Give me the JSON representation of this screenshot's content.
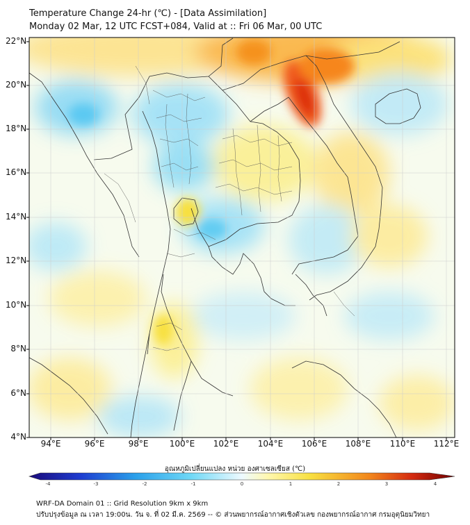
{
  "title_line1": "Temperature Change 24-hr (℃) - [Data Assimilation]",
  "title_line2": "Monday 02 Mar, 12 UTC FCST+084, Valid at :: Fri 06 Mar, 00 UTC",
  "lat_ticks": [
    "22°N",
    "20°N",
    "18°N",
    "16°N",
    "14°N",
    "12°N",
    "10°N",
    "8°N",
    "6°N",
    "4°N"
  ],
  "lon_ticks": [
    "94°E",
    "96°E",
    "98°E",
    "100°E",
    "102°E",
    "104°E",
    "106°E",
    "108°E",
    "110°E",
    "112°E"
  ],
  "colorbar": {
    "label": "อุณหภูมิเปลี่ยนแปลง หน่วย องศาเซลเซียส (℃)",
    "ticks": [
      "-4",
      "-3",
      "-2",
      "-1",
      "0",
      "1",
      "2",
      "3",
      "4"
    ],
    "min": -4,
    "max": 4,
    "colors": [
      "#1a0a7a",
      "#1e3cd0",
      "#2aa0ea",
      "#6fd8f6",
      "#eefaff",
      "#fff8b0",
      "#f8e040",
      "#f2861c",
      "#d42a10",
      "#6e0000"
    ]
  },
  "footer_line1": "WRF-DA Domain 01 :: Grid Resolution 9km x 9km",
  "footer_line2": "ปรับปรุงข้อมูล ณ เวลา 19:00น. วัน จ. ที่ 02 มี.ค. 2569 -- © ส่วนพยากรณ์อากาศเชิงตัวเลข กองพยากรณ์อากาศ กรมอุตุนิยมวิทยา"
}
